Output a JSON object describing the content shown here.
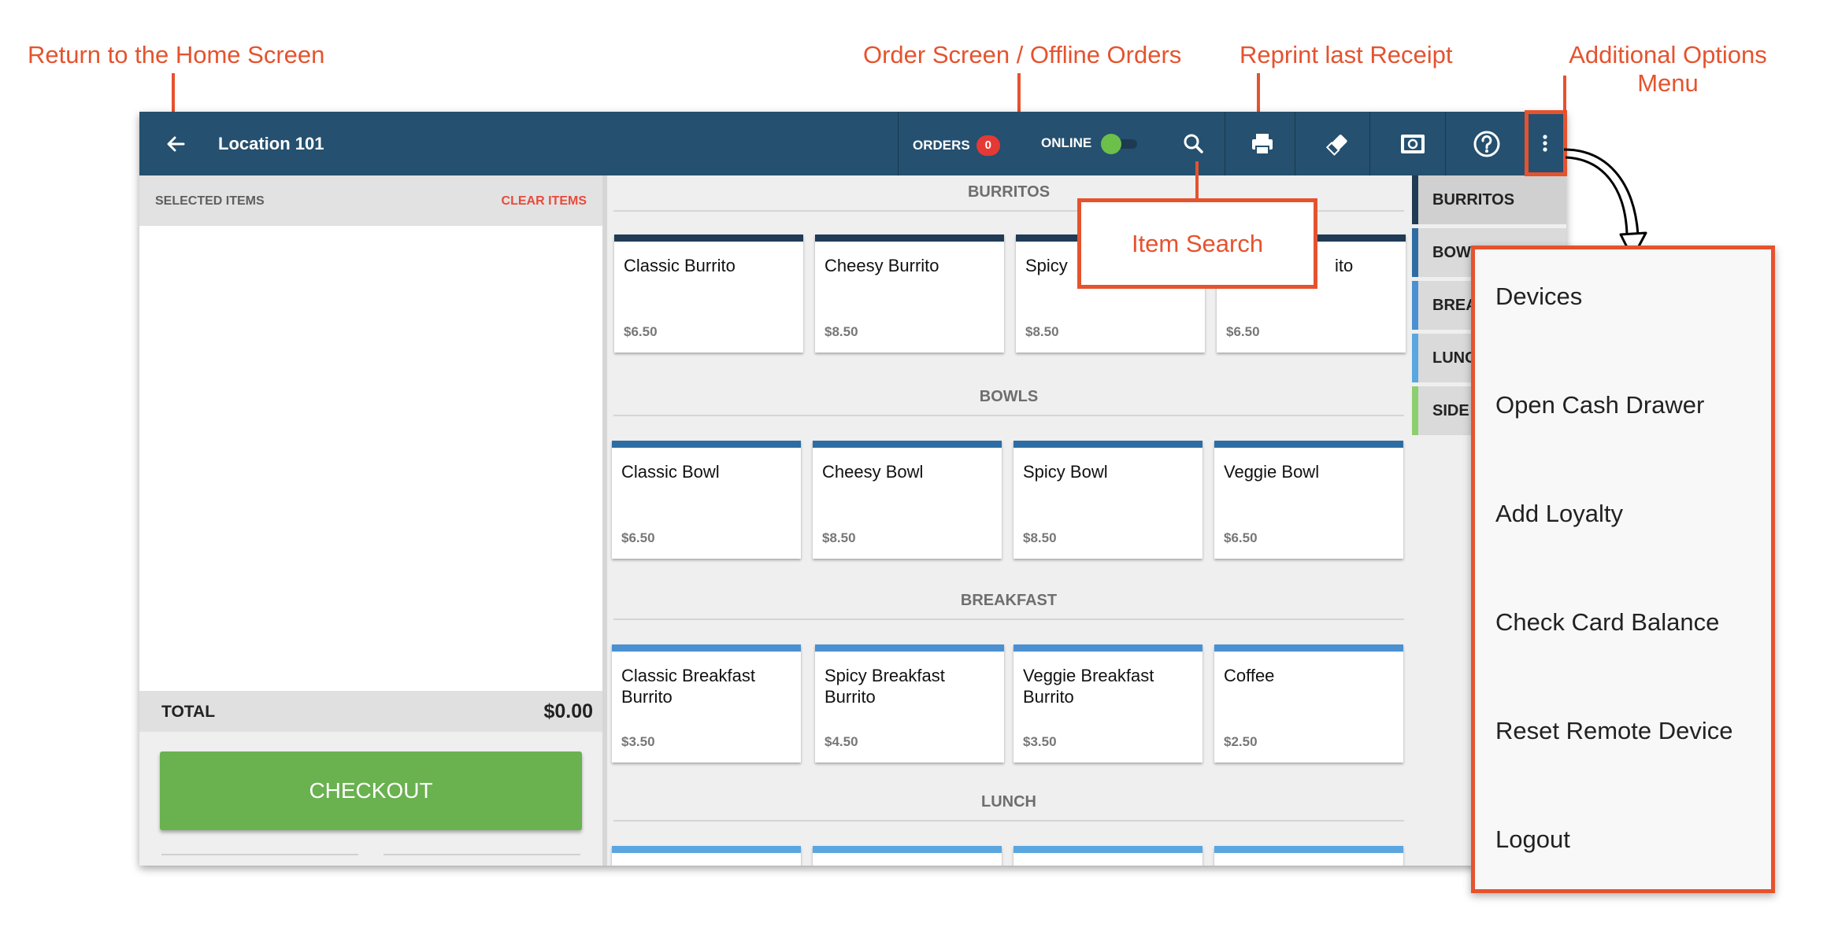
{
  "annotations": {
    "home": "Return to the Home Screen",
    "orders": "Order Screen / Offline Orders",
    "reprint": "Reprint last Receipt",
    "options": "Additional Options Menu",
    "search": "Item Search"
  },
  "header": {
    "title": "Location 101",
    "orders_label": "ORDERS",
    "orders_count": "0",
    "online_label": "ONLINE",
    "icons": [
      "back-arrow-icon",
      "search-icon",
      "printer-icon",
      "eraser-icon",
      "cash-drawer-icon",
      "help-icon",
      "more-vertical-icon"
    ]
  },
  "selected": {
    "title": "SELECTED ITEMS",
    "clear": "CLEAR ITEMS",
    "total_label": "TOTAL",
    "total_value": "$0.00",
    "checkout": "CHECKOUT"
  },
  "menu": {
    "categories": [
      {
        "name": "BURRITOS",
        "color": "#1f3b55",
        "items": [
          {
            "name": "Classic Burrito",
            "price": "$6.50"
          },
          {
            "name": "Cheesy Burrito",
            "price": "$8.50"
          },
          {
            "name": "Spicy",
            "price": "$8.50"
          },
          {
            "name": "ito",
            "price": "$6.50"
          }
        ]
      },
      {
        "name": "BOWLS",
        "color": "#2e6da4",
        "items": [
          {
            "name": "Classic Bowl",
            "price": "$6.50"
          },
          {
            "name": "Cheesy Bowl",
            "price": "$8.50"
          },
          {
            "name": "Spicy Bowl",
            "price": "$8.50"
          },
          {
            "name": "Veggie Bowl",
            "price": "$6.50"
          }
        ]
      },
      {
        "name": "BREAKFAST",
        "color": "#4a90d2",
        "items": [
          {
            "name": "Classic Breakfast Burrito",
            "price": "$3.50"
          },
          {
            "name": "Spicy Breakfast Burrito",
            "price": "$4.50"
          },
          {
            "name": "Veggie Breakfast Burrito",
            "price": "$3.50"
          },
          {
            "name": "Coffee",
            "price": "$2.50"
          }
        ]
      },
      {
        "name": "LUNCH",
        "color": "#5aa6e0",
        "items": []
      }
    ]
  },
  "nav": [
    {
      "label": "BURRITOS",
      "color": "#1f3b55"
    },
    {
      "label": "BOW",
      "color": "#2e6da4"
    },
    {
      "label": "BREA",
      "color": "#4a90d2"
    },
    {
      "label": "LUNC",
      "color": "#5aa6e0"
    },
    {
      "label": "SIDE",
      "color": "#8ccf6f"
    }
  ],
  "options_menu": [
    "Devices",
    "Open Cash Drawer",
    "Add Loyalty",
    "Check Card Balance",
    "Reset Remote Device",
    "Logout"
  ],
  "colors": {
    "header": "#25506f",
    "checkout": "#6ab150",
    "annotation": "#e5532e",
    "badge": "#e53935",
    "online": "#6cc04a"
  }
}
